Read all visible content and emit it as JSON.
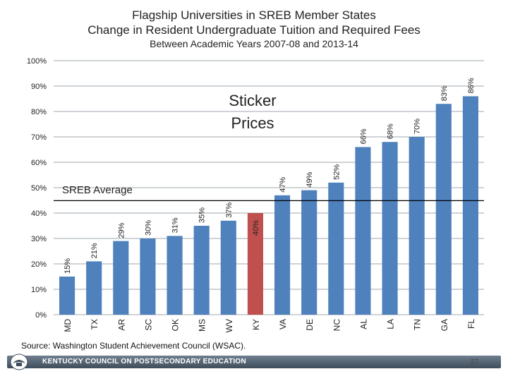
{
  "header": {
    "line1": "Flagship Universities in SREB Member States",
    "line2": "Change in Resident Undergraduate Tuition and Required Fees",
    "line3": "Between Academic Years 2007-08 and 2013-14"
  },
  "chart_data": {
    "type": "bar",
    "categories": [
      "MD",
      "TX",
      "AR",
      "SC",
      "OK",
      "MS",
      "WV",
      "KY",
      "VA",
      "DE",
      "NC",
      "AL",
      "LA",
      "TN",
      "GA",
      "FL"
    ],
    "values": [
      15,
      21,
      29,
      30,
      31,
      35,
      37,
      40,
      47,
      49,
      52,
      66,
      68,
      70,
      83,
      86
    ],
    "value_labels": [
      "15%",
      "21%",
      "29%",
      "30%",
      "31%",
      "35%",
      "37%",
      "40%",
      "47%",
      "49%",
      "52%",
      "66%",
      "68%",
      "70%",
      "83%",
      "86%"
    ],
    "highlight_category": "KY",
    "ylim": [
      0,
      100
    ],
    "yticks": [
      "0%",
      "10%",
      "20%",
      "30%",
      "40%",
      "50%",
      "60%",
      "70%",
      "80%",
      "90%",
      "100%"
    ],
    "reference_line": {
      "label": "SREB Average",
      "value": 44.9
    },
    "annotation": [
      "Sticker",
      "Prices"
    ],
    "colors": {
      "bar": "#4f81bd",
      "highlight": "#c0504d",
      "grid": "#7f8a94",
      "refline": "#000000"
    }
  },
  "source": "Source: Washington Student Achievement Council (WSAC).",
  "footer": {
    "org": "KENTUCKY COUNCIL ON POSTSECONDARY EDUCATION",
    "page": "27"
  }
}
